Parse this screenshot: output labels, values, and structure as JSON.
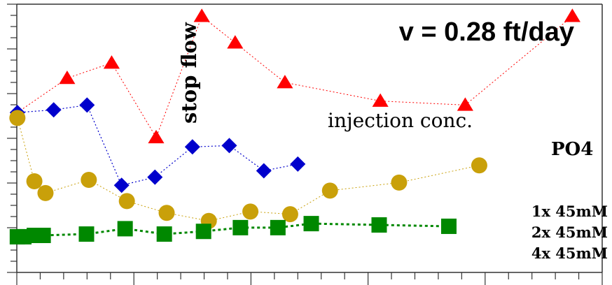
{
  "chart_data": {
    "type": "scatter",
    "title": "v = 0.28 ft/day",
    "xlim": [
      0,
      100
    ],
    "ylim": [
      0,
      100
    ],
    "grid": false,
    "legend": "right",
    "annotations": [
      {
        "text": "stop flow",
        "x": 30.9,
        "y": 73.4
      },
      {
        "text": "injection conc.",
        "x": 66.2,
        "y": 56.8
      },
      {
        "text": "PO4",
        "x": 93.8,
        "y": 47.3
      }
    ],
    "legend_labels": [
      "1x 45mM",
      "2x 45mM",
      "4x 45mM"
    ],
    "series": [
      {
        "marker": "triangle",
        "color": "#ff0000",
        "x": [
          0.1,
          8.6,
          16.2,
          23.8,
          31.6,
          37.3,
          45.8,
          62.1,
          76.6,
          94.9
        ],
        "y": [
          59.6,
          72.4,
          78.1,
          50.3,
          95.5,
          85.6,
          70.8,
          63.9,
          62.4,
          95.5
        ]
      },
      {
        "marker": "diamond",
        "color": "#0000cc",
        "x": [
          0.1,
          6.3,
          12.0,
          17.9,
          23.6,
          30.0,
          36.3,
          42.2,
          48.0
        ],
        "y": [
          59.6,
          60.6,
          62.4,
          32.5,
          35.5,
          46.8,
          47.3,
          37.9,
          40.4
        ]
      },
      {
        "marker": "circle",
        "color": "#c9a00a",
        "x": [
          0.1,
          3.0,
          4.9,
          12.3,
          18.8,
          25.6,
          32.8,
          39.9,
          46.7,
          53.5,
          65.3,
          79.0
        ],
        "y": [
          57.6,
          34.0,
          29.6,
          34.5,
          26.6,
          22.2,
          19.2,
          22.7,
          21.7,
          30.5,
          33.5,
          39.9
        ]
      },
      {
        "marker": "square",
        "color": "#008800",
        "x": [
          0.1,
          1.2,
          3.0,
          4.5,
          11.9,
          18.5,
          25.2,
          31.9,
          38.2,
          44.6,
          50.3,
          61.9,
          73.8
        ],
        "y": [
          13.3,
          13.3,
          13.8,
          13.8,
          14.3,
          16.3,
          14.3,
          15.3,
          16.7,
          16.7,
          18.2,
          17.7,
          17.2
        ]
      }
    ]
  }
}
